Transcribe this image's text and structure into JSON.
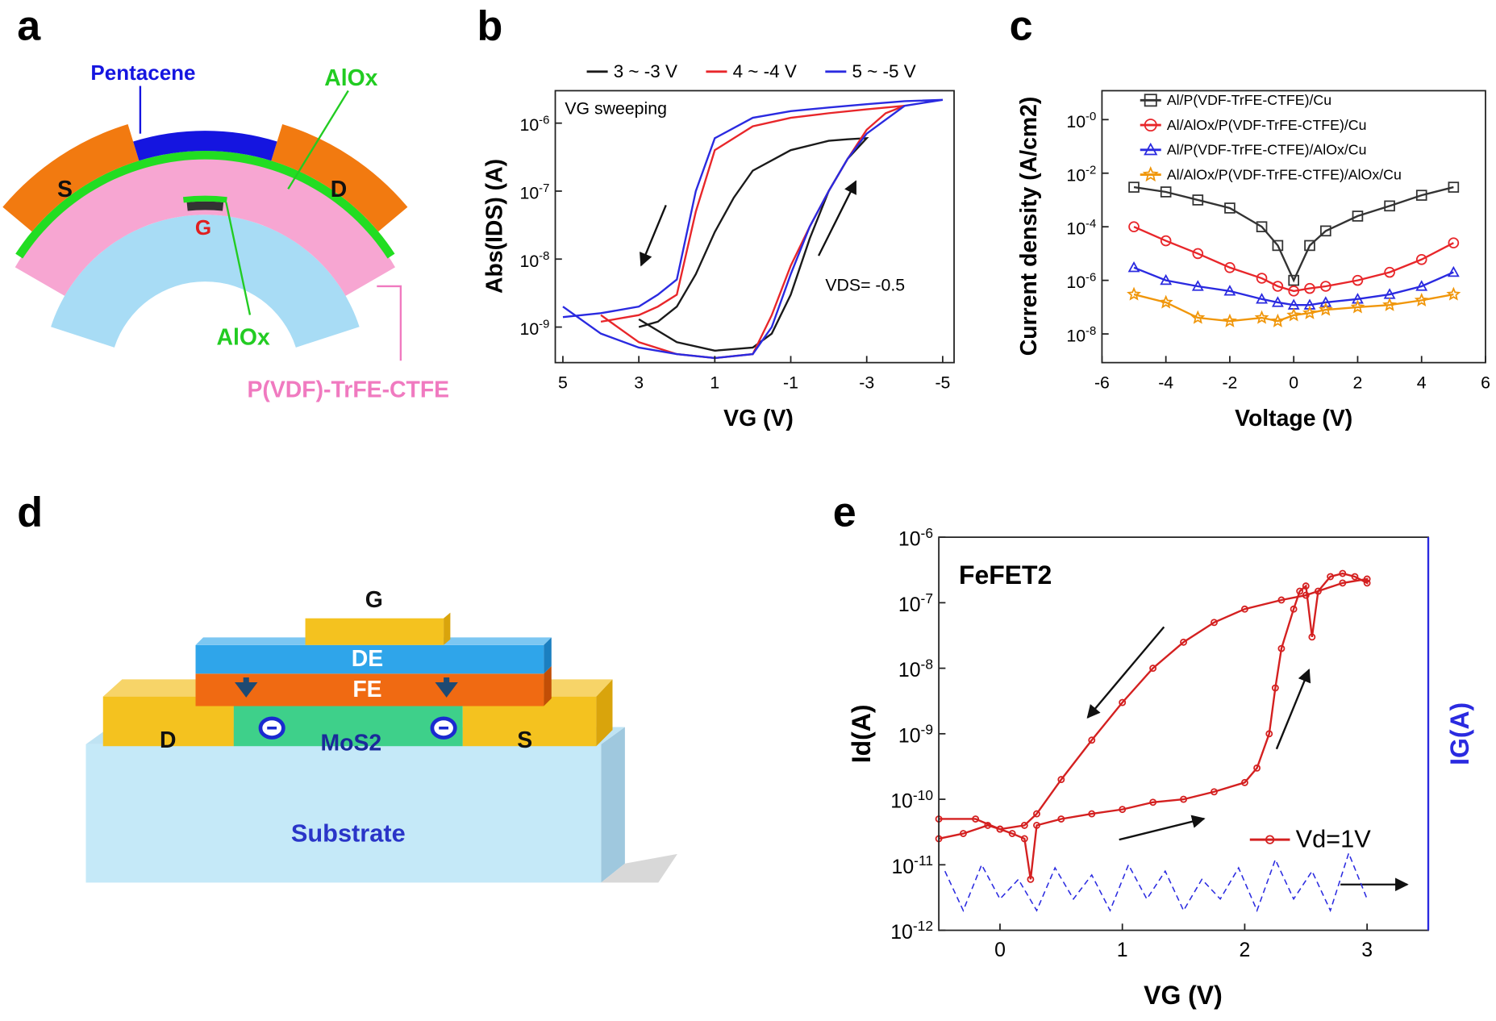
{
  "panel_labels": [
    "a",
    "b",
    "c",
    "d",
    "e"
  ],
  "diagram_a": {
    "pentacene": "Pentacene",
    "alox_top": "AlOx",
    "source": "S",
    "drain": "D",
    "gate": "G",
    "alox_gate": "AlOx",
    "ferroelectric": "P(VDF)-TrFE-CTFE"
  },
  "diagram_d": {
    "gate": "G",
    "dielectric": "DE",
    "ferroelectric": "FE",
    "drain": "D",
    "channel": "MoS2",
    "source": "S",
    "substrate": "Substrate"
  },
  "chart_data": [
    {
      "type": "line",
      "xlabel": "VG (V)",
      "ylabel": "Abs(IDS) (A)",
      "log_y": true,
      "xlim": [
        5.2,
        -5.3
      ],
      "ylim": [
        3e-10,
        3e-06
      ],
      "xticks": [
        5,
        3,
        1,
        -1,
        -3,
        -5
      ],
      "yticks": [
        {
          "value": 1e-09,
          "label": "10-9"
        },
        {
          "value": 1e-08,
          "label": "10-8"
        },
        {
          "value": 1e-07,
          "label": "10-7"
        },
        {
          "value": 1e-06,
          "label": "10-6"
        }
      ],
      "annotations": [
        "VG sweeping",
        "VDS= -0.5"
      ],
      "series": [
        {
          "name": "3 ~ -3 V",
          "color": "#1a1a1a",
          "x": [
            3,
            2,
            1,
            0,
            -0.5,
            -1,
            -1.5,
            -2,
            -2.5,
            -3,
            -2.5,
            -2,
            -1,
            0,
            0.5,
            1,
            1.5,
            2,
            2.5,
            3
          ],
          "values": [
            1.3e-09,
            6e-10,
            4.5e-10,
            5e-10,
            8e-10,
            3e-09,
            2e-08,
            1e-07,
            3e-07,
            6e-07,
            5.8e-07,
            5.5e-07,
            4e-07,
            2e-07,
            8e-08,
            2.5e-08,
            6e-09,
            2e-09,
            1.2e-09,
            1e-09
          ]
        },
        {
          "name": "4 ~ -4 V",
          "color": "#e8262a",
          "x": [
            4,
            3,
            2,
            1,
            0,
            -0.5,
            -1,
            -1.5,
            -2,
            -2.5,
            -3,
            -3.5,
            -4,
            -3,
            -2,
            -1,
            0,
            1,
            1.5,
            2,
            2.5,
            3,
            4
          ],
          "values": [
            1.5e-09,
            6e-10,
            4e-10,
            3.5e-10,
            4e-10,
            1.5e-09,
            8e-09,
            3e-08,
            1e-07,
            3e-07,
            8e-07,
            1.4e-06,
            1.8e-06,
            1.6e-06,
            1.4e-06,
            1.2e-06,
            9e-07,
            4e-07,
            5e-08,
            3e-09,
            2e-09,
            1.5e-09,
            1.2e-09
          ]
        },
        {
          "name": "5 ~ -5 V",
          "color": "#2a2ae0",
          "x": [
            5,
            4,
            3,
            2,
            1,
            0,
            -0.5,
            -1,
            -1.5,
            -2,
            -2.5,
            -3,
            -4,
            -5,
            -4,
            -3,
            -2,
            -1,
            0,
            1,
            1.5,
            2,
            2.5,
            3,
            4,
            5
          ],
          "values": [
            2e-09,
            8e-10,
            5e-10,
            4e-10,
            3.5e-10,
            4e-10,
            1e-09,
            6e-09,
            3e-08,
            1e-07,
            3e-07,
            7e-07,
            1.8e-06,
            2.2e-06,
            2.1e-06,
            1.9e-06,
            1.7e-06,
            1.5e-06,
            1.2e-06,
            6e-07,
            1e-07,
            5e-09,
            3e-09,
            2e-09,
            1.6e-09,
            1.4e-09
          ]
        }
      ]
    },
    {
      "type": "line",
      "xlabel": "Voltage (V)",
      "ylabel": "Current density (A/cm2)",
      "log_y": true,
      "xlim": [
        -6,
        6
      ],
      "ylim": [
        8.5e-10,
        12
      ],
      "xticks": [
        -6,
        -4,
        -2,
        0,
        2,
        4,
        6
      ],
      "yticks": [
        {
          "value": 1e-08,
          "label": "10-8"
        },
        {
          "value": 1e-06,
          "label": "10-6"
        },
        {
          "value": 0.0001,
          "label": "10-4"
        },
        {
          "value": 0.01,
          "label": "10-2"
        },
        {
          "value": 1,
          "label": "10-0"
        }
      ],
      "series": [
        {
          "name": "Al/P(VDF-TrFE-CTFE)/Cu",
          "color": "#333333",
          "marker": "square",
          "x": [
            -5,
            -4,
            -3,
            -2,
            -1,
            -0.5,
            0,
            0.5,
            1,
            2,
            3,
            4,
            5
          ],
          "values": [
            0.003,
            0.002,
            0.001,
            0.0005,
            0.0001,
            2e-05,
            1e-06,
            2e-05,
            7e-05,
            0.00025,
            0.0006,
            0.0015,
            0.003
          ]
        },
        {
          "name": "Al/AlOx/P(VDF-TrFE-CTFE)/Cu",
          "color": "#e8262a",
          "marker": "circle",
          "x": [
            -5,
            -4,
            -3,
            -2,
            -1,
            -0.5,
            0,
            0.5,
            1,
            2,
            3,
            4,
            5
          ],
          "values": [
            0.0001,
            3e-05,
            1e-05,
            3e-06,
            1.2e-06,
            6e-07,
            4e-07,
            5e-07,
            6e-07,
            1e-06,
            2e-06,
            6e-06,
            2.5e-05
          ]
        },
        {
          "name": "Al/P(VDF-TrFE-CTFE)/AlOx/Cu",
          "color": "#2a2ae0",
          "marker": "triangle",
          "x": [
            -5,
            -4,
            -3,
            -2,
            -1,
            -0.5,
            0,
            0.5,
            1,
            2,
            3,
            4,
            5
          ],
          "values": [
            3e-06,
            1e-06,
            6e-07,
            4e-07,
            2e-07,
            1.5e-07,
            1.2e-07,
            1.2e-07,
            1.5e-07,
            2e-07,
            3e-07,
            6e-07,
            2e-06
          ]
        },
        {
          "name": "Al/AlOx/P(VDF-TrFE-CTFE)/AlOx/Cu",
          "color": "#f0960a",
          "marker": "star",
          "x": [
            -5,
            -4,
            -3,
            -2,
            -1,
            -0.5,
            0,
            0.5,
            1,
            2,
            3,
            4,
            5
          ],
          "values": [
            3e-07,
            1.5e-07,
            4e-08,
            3e-08,
            4e-08,
            3e-08,
            5e-08,
            6e-08,
            8e-08,
            1e-07,
            1.2e-07,
            1.8e-07,
            3e-07
          ]
        }
      ]
    },
    {
      "type": "line",
      "xlabel": "VG (V)",
      "ylabel": "Id(A)",
      "y2label": "IG(A)",
      "log_y": true,
      "xlim": [
        -0.5,
        3.5
      ],
      "ylim": [
        1e-12,
        1e-06
      ],
      "xticks": [
        0,
        1,
        2,
        3
      ],
      "yticks": [
        {
          "value": 1e-12,
          "label": "10-12"
        },
        {
          "value": 1e-11,
          "label": "10-11"
        },
        {
          "value": 1e-10,
          "label": "10-10"
        },
        {
          "value": 1e-09,
          "label": "10-9"
        },
        {
          "value": 1e-08,
          "label": "10-8"
        },
        {
          "value": 1e-07,
          "label": "10-7"
        },
        {
          "value": 1e-06,
          "label": "10-6"
        }
      ],
      "annotations": [
        "FeFET2"
      ],
      "series": [
        {
          "name": "Vd=1V",
          "color": "#d42020",
          "marker": "circle",
          "x": [
            -0.5,
            -0.3,
            -0.1,
            0,
            0.1,
            0.2,
            0.25,
            0.3,
            0.5,
            0.75,
            1,
            1.25,
            1.5,
            1.75,
            2,
            2.1,
            2.2,
            2.25,
            2.3,
            2.4,
            2.45,
            2.5,
            2.55,
            2.6,
            2.7,
            2.8,
            2.9,
            3,
            3,
            2.8,
            2.5,
            2.3,
            2,
            1.75,
            1.5,
            1.25,
            1,
            0.75,
            0.5,
            0.3,
            0.2,
            0,
            -0.2,
            -0.5
          ],
          "values": [
            2.5e-11,
            3e-11,
            4e-11,
            3.5e-11,
            3e-11,
            2.5e-11,
            6e-12,
            4e-11,
            5e-11,
            6e-11,
            7e-11,
            9e-11,
            1e-10,
            1.3e-10,
            1.8e-10,
            3e-10,
            1e-09,
            5e-09,
            2e-08,
            8e-08,
            1.5e-07,
            1.8e-07,
            3e-08,
            1.5e-07,
            2.5e-07,
            2.8e-07,
            2.5e-07,
            2e-07,
            2.3e-07,
            2e-07,
            1.3e-07,
            1.1e-07,
            8e-08,
            5e-08,
            2.5e-08,
            1e-08,
            3e-09,
            8e-10,
            2e-10,
            6e-11,
            4e-11,
            3.5e-11,
            5e-11,
            5e-11
          ]
        },
        {
          "color": "#2a2ae0",
          "linestyle": "dashed",
          "x": [
            -0.45,
            -0.3,
            -0.15,
            0,
            0.15,
            0.3,
            0.45,
            0.6,
            0.75,
            0.9,
            1.05,
            1.2,
            1.35,
            1.5,
            1.65,
            1.8,
            1.95,
            2.1,
            2.25,
            2.4,
            2.55,
            2.7,
            2.85,
            3
          ],
          "values": [
            8e-12,
            2e-12,
            1e-11,
            3e-12,
            6e-12,
            2e-12,
            9e-12,
            3e-12,
            7e-12,
            2e-12,
            1e-11,
            3e-12,
            8e-12,
            2e-12,
            6e-12,
            3e-12,
            9e-12,
            2e-12,
            1.2e-11,
            3e-12,
            8e-12,
            2e-12,
            1.5e-11,
            3e-12
          ]
        }
      ]
    }
  ]
}
